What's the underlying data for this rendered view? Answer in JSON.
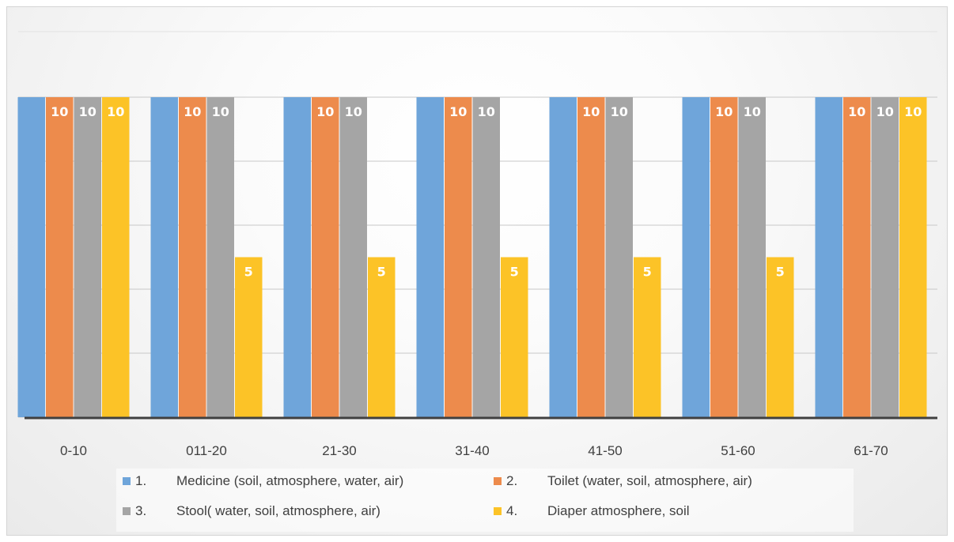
{
  "chart_data": {
    "type": "bar",
    "title": "",
    "xlabel": "",
    "ylabel": "",
    "ylim": [
      0,
      10
    ],
    "grid": true,
    "legend_position": "bottom",
    "categories": [
      "0-10",
      "011-20",
      "21-30",
      "31-40",
      "41-50",
      "51-60",
      "61-70"
    ],
    "series": [
      {
        "name": "Medicine (soil, atmosphere, water, air)",
        "number": "1.",
        "color": "#6fa5da",
        "values": [
          10,
          10,
          10,
          10,
          10,
          10,
          10
        ],
        "show_labels": false
      },
      {
        "name": "Toilet (water, soil, atmosphere, air)",
        "number": "2.",
        "color": "#ed8b4c",
        "values": [
          10,
          10,
          10,
          10,
          10,
          10,
          10
        ],
        "show_labels": true
      },
      {
        "name": "Stool( water, soil, atmosphere, air)",
        "number": "3.",
        "color": "#a5a5a5",
        "values": [
          10,
          10,
          10,
          10,
          10,
          10,
          10
        ],
        "show_labels": true
      },
      {
        "name": "Diaper atmosphere, soil",
        "number": "4.",
        "color": "#fcc327",
        "values": [
          10,
          5,
          5,
          5,
          5,
          5,
          10
        ],
        "show_labels": true
      }
    ]
  }
}
